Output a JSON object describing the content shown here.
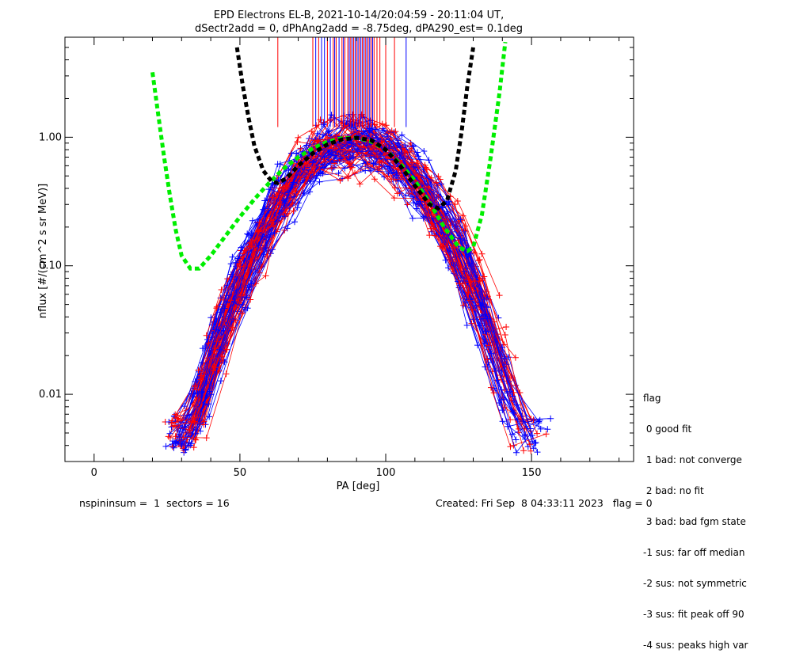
{
  "chart_data": {
    "type": "line",
    "title": "EPD Electrons EL-B, 2021-10-14/20:04:59 - 20:11:04 UT,",
    "subtitle": "dSectr2add = 0, dPhAng2add = -8.75deg, dPA290_est=   0.1deg",
    "xlabel": "PA [deg]",
    "ylabel": "nflux [#/(cm^2 s sr MeV)]",
    "xlim": [
      -10,
      185
    ],
    "ylim": [
      0.003,
      6.0
    ],
    "yscale": "log",
    "xticks": [
      0,
      50,
      100,
      150
    ],
    "xtick_labels": [
      "0",
      "50",
      "100",
      "150"
    ],
    "yticks": [
      0.01,
      0.1,
      1.0
    ],
    "ytick_labels": [
      "0.01",
      "0.10",
      "1.00"
    ],
    "grid": false,
    "series": [
      {
        "color": "#ff0000",
        "style": "thin-line-plus"
      },
      {
        "color": "#0000ff",
        "style": "thin-line-plus"
      },
      {
        "color": "#00ee00",
        "style": "thick-dashed",
        "x": [
          20,
          22,
          24,
          26,
          28,
          30,
          33,
          36,
          40,
          45,
          50,
          55,
          60,
          65,
          70,
          75,
          80,
          85,
          90,
          95,
          100,
          105,
          110,
          115,
          120,
          125,
          128,
          130,
          133,
          136,
          139,
          141
        ],
        "y": [
          3.2,
          1.5,
          0.7,
          0.35,
          0.19,
          0.12,
          0.095,
          0.095,
          0.12,
          0.17,
          0.24,
          0.33,
          0.44,
          0.57,
          0.7,
          0.82,
          0.92,
          0.98,
          0.99,
          0.93,
          0.8,
          0.62,
          0.46,
          0.31,
          0.2,
          0.14,
          0.13,
          0.14,
          0.25,
          0.7,
          2.2,
          5.5
        ]
      },
      {
        "color": "#000000",
        "style": "thick-dashed",
        "x": [
          49,
          51,
          53,
          55,
          58,
          61,
          63,
          66,
          70,
          75,
          80,
          85,
          90,
          95,
          100,
          105,
          110,
          115,
          118,
          121,
          124,
          126,
          128,
          130
        ],
        "y": [
          5.0,
          2.5,
          1.4,
          0.85,
          0.55,
          0.45,
          0.44,
          0.48,
          0.6,
          0.75,
          0.88,
          0.96,
          0.99,
          0.95,
          0.8,
          0.6,
          0.42,
          0.3,
          0.28,
          0.32,
          0.55,
          1.1,
          2.5,
          5.0
        ]
      }
    ],
    "legend": {
      "placement": "bottom-right outside",
      "title": "flag",
      "entries": [
        " 0 good fit",
        " 1 bad: not converge",
        " 2 bad: no fit",
        " 3 bad: bad fgm state",
        "-1 sus: far off median",
        "-2 sus: not symmetric",
        "-3 sus: fit peak off 90",
        "-4 sus: peaks high var"
      ]
    },
    "vertical_markers": {
      "y_range": [
        1.2,
        6.0
      ],
      "red_x": [
        63,
        75,
        77,
        80,
        82,
        83,
        85,
        86,
        87,
        88,
        89,
        90,
        91,
        92,
        93,
        94,
        95,
        96,
        97,
        98,
        100,
        103
      ],
      "blue_x": [
        76,
        78,
        79,
        81,
        82.5,
        84,
        85.5,
        87.5,
        88.5,
        89.5,
        90.5,
        91.5,
        92.5,
        93.5,
        94.5,
        95.5,
        107
      ]
    }
  },
  "footer": {
    "left": "nspininsum =  1  sectors = 16",
    "right": "Created: Fri Sep  8 04:33:11 2023   flag = 0"
  }
}
